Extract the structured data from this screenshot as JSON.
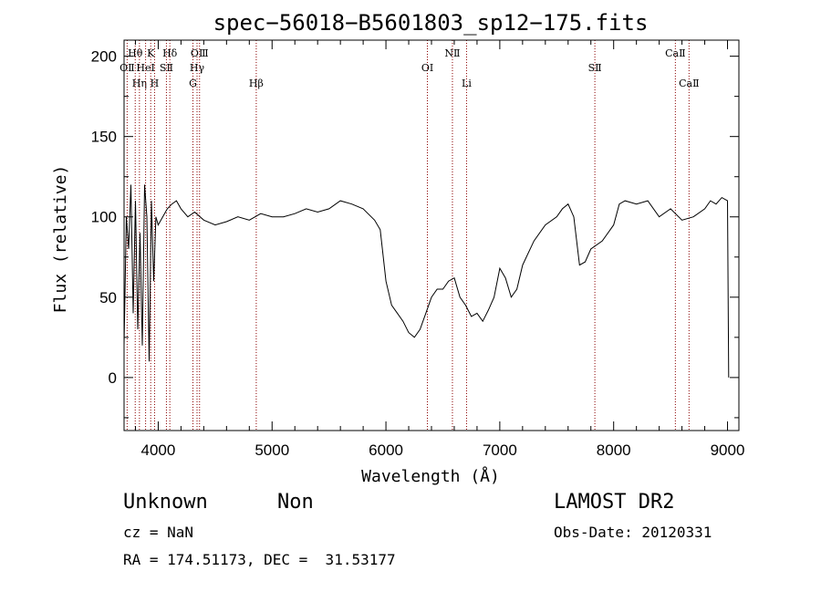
{
  "chart_data": {
    "type": "line",
    "title": "spec−56018−B5601803_sp12−175.fits",
    "xlabel": "Wavelength (Å)",
    "ylabel": "Flux (relative)",
    "xlim": [
      3700,
      9100
    ],
    "ylim": [
      -33,
      210
    ],
    "x_ticks": [
      4000,
      5000,
      6000,
      7000,
      8000,
      9000
    ],
    "y_ticks": [
      0,
      50,
      100,
      150,
      200
    ],
    "grid": false,
    "line_color": "#000000",
    "marker_color": "#8b0000",
    "series": [
      {
        "x": [
          3700,
          3720,
          3740,
          3760,
          3780,
          3800,
          3820,
          3840,
          3860,
          3880,
          3900,
          3920,
          3940,
          3960,
          3980,
          4000,
          4040,
          4080,
          4120,
          4160,
          4200,
          4260,
          4320,
          4400,
          4500,
          4600,
          4700,
          4800,
          4900,
          5000,
          5100,
          5200,
          5300,
          5400,
          5500,
          5600,
          5700,
          5800,
          5900,
          5950,
          6000,
          6050,
          6100,
          6150,
          6200,
          6250,
          6300,
          6350,
          6400,
          6450,
          6500,
          6550,
          6600,
          6650,
          6700,
          6750,
          6800,
          6850,
          6900,
          6950,
          7000,
          7050,
          7100,
          7150,
          7200,
          7300,
          7400,
          7500,
          7550,
          7600,
          7650,
          7700,
          7750,
          7800,
          7900,
          8000,
          8050,
          8100,
          8200,
          8300,
          8400,
          8500,
          8600,
          8700,
          8800,
          8850,
          8900,
          8950,
          9000,
          9010
        ],
        "y": [
          20,
          100,
          80,
          120,
          40,
          110,
          30,
          90,
          20,
          120,
          100,
          10,
          110,
          60,
          100,
          95,
          100,
          105,
          108,
          110,
          105,
          100,
          103,
          98,
          95,
          97,
          100,
          98,
          102,
          100,
          100,
          102,
          105,
          103,
          105,
          110,
          108,
          105,
          98,
          92,
          60,
          45,
          40,
          35,
          28,
          25,
          30,
          40,
          50,
          55,
          55,
          60,
          62,
          50,
          45,
          38,
          40,
          35,
          42,
          50,
          68,
          62,
          50,
          55,
          70,
          85,
          95,
          100,
          105,
          108,
          100,
          70,
          72,
          80,
          85,
          95,
          108,
          110,
          108,
          110,
          100,
          105,
          98,
          100,
          105,
          110,
          108,
          112,
          110,
          0
        ]
      }
    ],
    "line_markers": [
      {
        "label": "OⅡ",
        "wavelength": 3727,
        "row": 2
      },
      {
        "label": "Hθ",
        "wavelength": 3798,
        "row": 1
      },
      {
        "label": "Hη",
        "wavelength": 3835,
        "row": 3
      },
      {
        "label": "HeI",
        "wavelength": 3889,
        "row": 2
      },
      {
        "label": "K",
        "wavelength": 3934,
        "row": 1
      },
      {
        "label": "H",
        "wavelength": 3968,
        "row": 3
      },
      {
        "label": "SⅡ",
        "wavelength": 4072,
        "row": 2
      },
      {
        "label": "Hδ",
        "wavelength": 4102,
        "row": 1
      },
      {
        "label": "G",
        "wavelength": 4305,
        "row": 3
      },
      {
        "label": "Hγ",
        "wavelength": 4341,
        "row": 2
      },
      {
        "label": "OⅢ",
        "wavelength": 4363,
        "row": 1
      },
      {
        "label": "Hβ",
        "wavelength": 4861,
        "row": 3
      },
      {
        "label": "OI",
        "wavelength": 6364,
        "row": 2
      },
      {
        "label": "NⅡ",
        "wavelength": 6584,
        "row": 1
      },
      {
        "label": "Li",
        "wavelength": 6708,
        "row": 3
      },
      {
        "label": "SⅡ",
        "wavelength": 7835,
        "row": 2
      },
      {
        "label": "CaⅡ",
        "wavelength": 8542,
        "row": 1
      },
      {
        "label": "CaⅡ",
        "wavelength": 8662,
        "row": 3
      }
    ]
  },
  "info": {
    "object_class": "Unknown",
    "subclass": "Non",
    "survey": "LAMOST DR2",
    "cz": "cz = NaN",
    "obs_date": "Obs-Date: 20120331",
    "coords": "RA = 174.51173, DEC =  31.53177"
  }
}
